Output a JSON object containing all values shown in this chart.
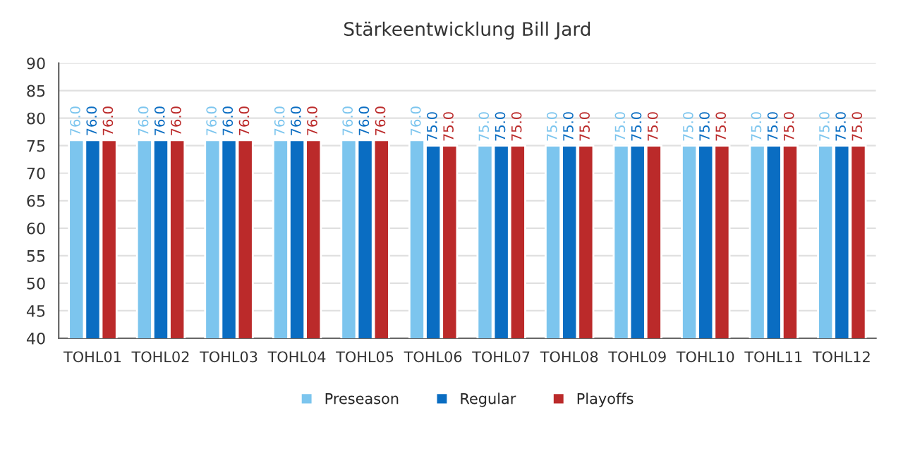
{
  "chart_data": {
    "type": "bar",
    "title": "Stärkeentwicklung Bill Jard",
    "categories": [
      "TOHL01",
      "TOHL02",
      "TOHL03",
      "TOHL04",
      "TOHL05",
      "TOHL06",
      "TOHL07",
      "TOHL08",
      "TOHL09",
      "TOHL10",
      "TOHL11",
      "TOHL12"
    ],
    "series": [
      {
        "name": "Preseason",
        "color": "#7cc5ee",
        "values": [
          76,
          76,
          76,
          76,
          76,
          76,
          75,
          75,
          75,
          75,
          75,
          75
        ],
        "value_labels": [
          "76.0",
          "76.0",
          "76.0",
          "76.0",
          "76.0",
          "76.0",
          "75.0",
          "75.0",
          "75.0",
          "75.0",
          "75.0",
          "75.0"
        ]
      },
      {
        "name": "Regular",
        "color": "#0a6dc2",
        "values": [
          76,
          76,
          76,
          76,
          76,
          75,
          75,
          75,
          75,
          75,
          75,
          75
        ],
        "value_labels": [
          "76.0",
          "76.0",
          "76.0",
          "76.0",
          "76.0",
          "75.0",
          "75.0",
          "75.0",
          "75.0",
          "75.0",
          "75.0",
          "75.0"
        ]
      },
      {
        "name": "Playoffs",
        "color": "#bb2a2a",
        "values": [
          76,
          76,
          76,
          76,
          76,
          75,
          75,
          75,
          75,
          75,
          75,
          75
        ],
        "value_labels": [
          "76.0",
          "76.0",
          "76.0",
          "76.0",
          "76.0",
          "75.0",
          "75.0",
          "75.0",
          "75.0",
          "75.0",
          "75.0",
          "75.0"
        ]
      }
    ],
    "ylim": [
      40,
      90
    ],
    "yticks": [
      40,
      45,
      50,
      55,
      60,
      65,
      70,
      75,
      80,
      85,
      90
    ],
    "grid": "y",
    "legend": "bottom"
  }
}
